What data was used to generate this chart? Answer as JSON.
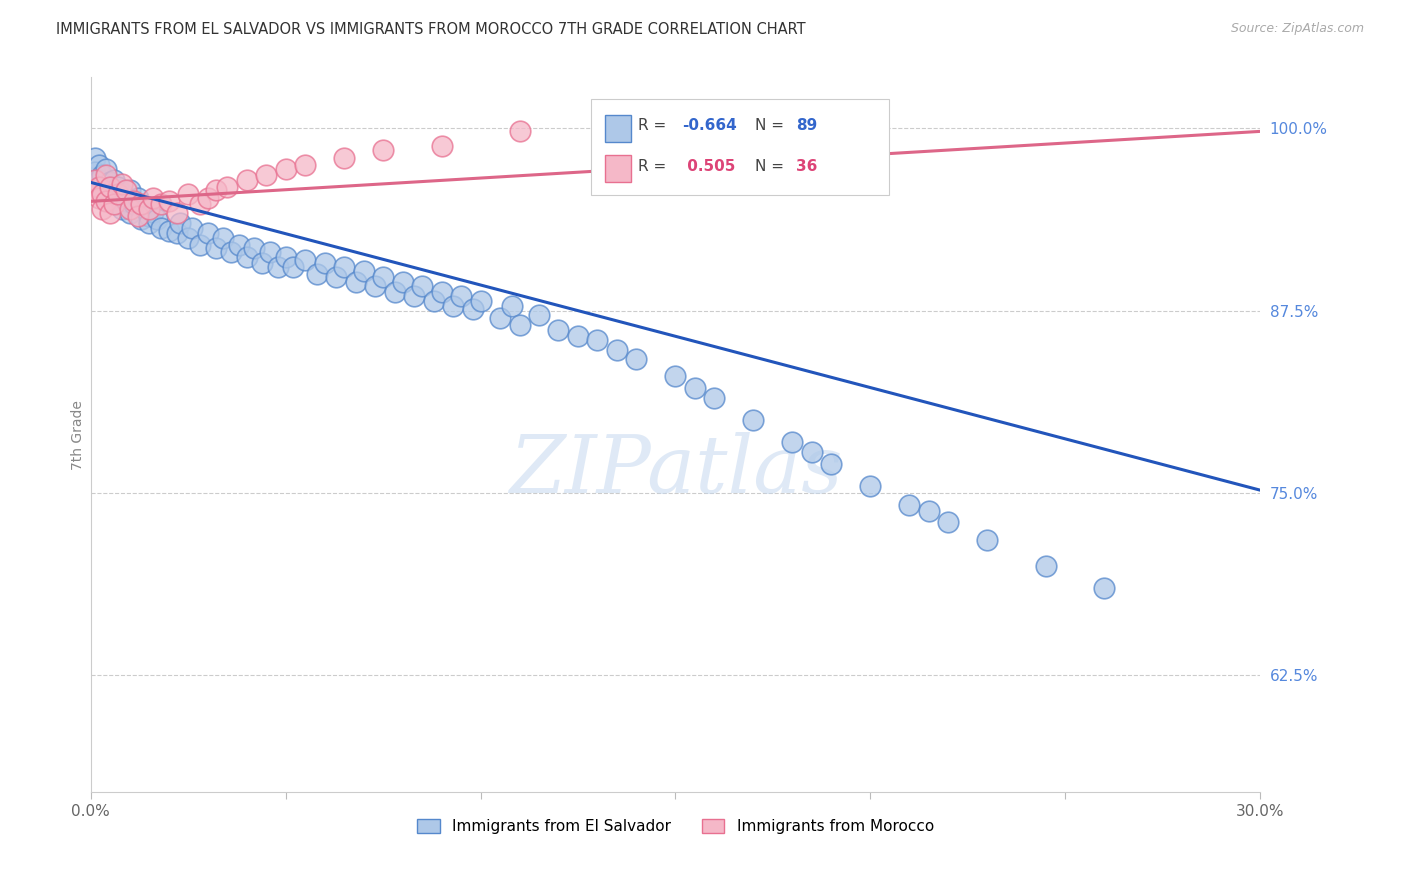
{
  "title": "IMMIGRANTS FROM EL SALVADOR VS IMMIGRANTS FROM MOROCCO 7TH GRADE CORRELATION CHART",
  "source": "Source: ZipAtlas.com",
  "ylabel": "7th Grade",
  "y_ticks": [
    0.625,
    0.75,
    0.875,
    1.0
  ],
  "y_tick_labels": [
    "62.5%",
    "75.0%",
    "87.5%",
    "100.0%"
  ],
  "x_min": 0.0,
  "x_max": 0.3,
  "y_min": 0.545,
  "y_max": 1.035,
  "legend_r1": "R = -0.664",
  "legend_n1": "N = 89",
  "legend_r2": "R =  0.505",
  "legend_n2": "N = 36",
  "color_blue_fill": "#aec8e8",
  "color_pink_fill": "#f5b8c8",
  "color_blue_edge": "#5588cc",
  "color_pink_edge": "#e87090",
  "color_blue_line": "#2255bb",
  "color_pink_line": "#dd6688",
  "blue_line_y0": 0.963,
  "blue_line_y1": 0.752,
  "pink_line_y0": 0.95,
  "pink_line_y1": 0.998,
  "watermark_text": "ZIPatlas",
  "background_color": "#ffffff",
  "legend_label1": "Immigrants from El Salvador",
  "legend_label2": "Immigrants from Morocco",
  "el_salvador_x": [
    0.001,
    0.001,
    0.002,
    0.002,
    0.002,
    0.003,
    0.003,
    0.004,
    0.004,
    0.005,
    0.005,
    0.006,
    0.006,
    0.007,
    0.007,
    0.008,
    0.008,
    0.009,
    0.01,
    0.01,
    0.011,
    0.012,
    0.013,
    0.014,
    0.015,
    0.015,
    0.016,
    0.017,
    0.018,
    0.02,
    0.022,
    0.023,
    0.025,
    0.026,
    0.028,
    0.03,
    0.032,
    0.034,
    0.036,
    0.038,
    0.04,
    0.042,
    0.044,
    0.046,
    0.048,
    0.05,
    0.052,
    0.055,
    0.058,
    0.06,
    0.063,
    0.065,
    0.068,
    0.07,
    0.073,
    0.075,
    0.078,
    0.08,
    0.083,
    0.085,
    0.088,
    0.09,
    0.093,
    0.095,
    0.098,
    0.1,
    0.105,
    0.108,
    0.11,
    0.115,
    0.12,
    0.125,
    0.13,
    0.135,
    0.14,
    0.15,
    0.155,
    0.16,
    0.17,
    0.18,
    0.185,
    0.19,
    0.2,
    0.21,
    0.215,
    0.22,
    0.23,
    0.245,
    0.26
  ],
  "el_salvador_y": [
    0.98,
    0.97,
    0.975,
    0.965,
    0.96,
    0.968,
    0.958,
    0.972,
    0.955,
    0.963,
    0.95,
    0.965,
    0.952,
    0.96,
    0.948,
    0.956,
    0.945,
    0.95,
    0.958,
    0.942,
    0.948,
    0.952,
    0.938,
    0.945,
    0.94,
    0.935,
    0.943,
    0.938,
    0.932,
    0.93,
    0.928,
    0.935,
    0.925,
    0.932,
    0.92,
    0.928,
    0.918,
    0.925,
    0.915,
    0.92,
    0.912,
    0.918,
    0.908,
    0.915,
    0.905,
    0.912,
    0.905,
    0.91,
    0.9,
    0.908,
    0.898,
    0.905,
    0.895,
    0.902,
    0.892,
    0.898,
    0.888,
    0.895,
    0.885,
    0.892,
    0.882,
    0.888,
    0.878,
    0.885,
    0.876,
    0.882,
    0.87,
    0.878,
    0.865,
    0.872,
    0.862,
    0.858,
    0.855,
    0.848,
    0.842,
    0.83,
    0.822,
    0.815,
    0.8,
    0.785,
    0.778,
    0.77,
    0.755,
    0.742,
    0.738,
    0.73,
    0.718,
    0.7,
    0.685
  ],
  "morocco_x": [
    0.001,
    0.001,
    0.002,
    0.002,
    0.003,
    0.003,
    0.004,
    0.004,
    0.005,
    0.005,
    0.006,
    0.007,
    0.008,
    0.009,
    0.01,
    0.011,
    0.012,
    0.013,
    0.015,
    0.016,
    0.018,
    0.02,
    0.022,
    0.025,
    0.028,
    0.03,
    0.032,
    0.035,
    0.04,
    0.045,
    0.05,
    0.055,
    0.065,
    0.075,
    0.09,
    0.11
  ],
  "morocco_y": [
    0.958,
    0.965,
    0.96,
    0.952,
    0.955,
    0.945,
    0.968,
    0.95,
    0.96,
    0.942,
    0.948,
    0.955,
    0.962,
    0.958,
    0.945,
    0.95,
    0.94,
    0.948,
    0.945,
    0.952,
    0.948,
    0.95,
    0.942,
    0.955,
    0.948,
    0.952,
    0.958,
    0.96,
    0.965,
    0.968,
    0.972,
    0.975,
    0.98,
    0.985,
    0.988,
    0.998
  ]
}
